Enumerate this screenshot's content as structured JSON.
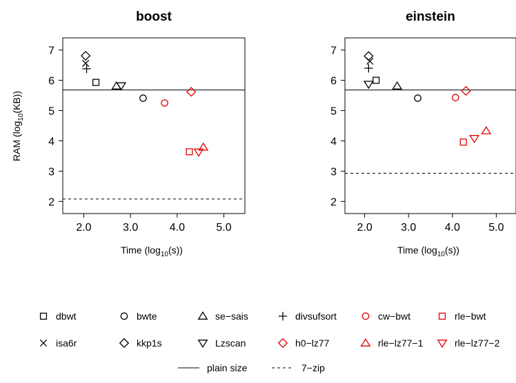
{
  "chart_data": {
    "type": "scatter",
    "colors": {
      "black": "#000000",
      "red": "#e00000"
    },
    "xlim": [
      1.55,
      5.45
    ],
    "ylim": [
      1.6,
      7.4
    ],
    "x_ticks": [
      "2.0",
      "3.0",
      "4.0",
      "5.0"
    ],
    "x_tick_values": [
      2,
      3,
      4,
      5
    ],
    "y_ticks": [
      "2",
      "3",
      "4",
      "5",
      "6",
      "7"
    ],
    "y_tick_values": [
      2,
      3,
      4,
      5,
      6,
      7
    ],
    "ylabel": {
      "main": "RAM (log",
      "sub": "10",
      "tail": "(KB))"
    },
    "xlabel": {
      "main": "Time (log",
      "sub": "10",
      "tail": "(s))"
    },
    "panels": [
      {
        "title": "boost",
        "plain_size": 5.68,
        "seven_zip": 2.08,
        "points": [
          {
            "series": "kkp1s",
            "x": 2.04,
            "y": 6.81
          },
          {
            "series": "isa6r",
            "x": 2.04,
            "y": 6.56
          },
          {
            "series": "divsufsort",
            "x": 2.06,
            "y": 6.38
          },
          {
            "series": "dbwt",
            "x": 2.26,
            "y": 5.93
          },
          {
            "series": "se-sais",
            "x": 2.7,
            "y": 5.81
          },
          {
            "series": "Lzscan",
            "x": 2.8,
            "y": 5.82
          },
          {
            "series": "bwte",
            "x": 3.27,
            "y": 5.41
          },
          {
            "series": "cw-bwt",
            "x": 3.73,
            "y": 5.25
          },
          {
            "series": "h0-lz77",
            "x": 4.3,
            "y": 5.62
          },
          {
            "series": "rle-bwt",
            "x": 4.26,
            "y": 3.64
          },
          {
            "series": "rle-lz77-2",
            "x": 4.46,
            "y": 3.63
          },
          {
            "series": "rle-lz77-1",
            "x": 4.56,
            "y": 3.79
          }
        ]
      },
      {
        "title": "einstein",
        "plain_size": 5.68,
        "seven_zip": 2.93,
        "points": [
          {
            "series": "kkp1s",
            "x": 2.09,
            "y": 6.8
          },
          {
            "series": "isa6r",
            "x": 2.12,
            "y": 6.63
          },
          {
            "series": "divsufsort",
            "x": 2.09,
            "y": 6.4
          },
          {
            "series": "dbwt",
            "x": 2.26,
            "y": 6.0
          },
          {
            "series": "Lzscan",
            "x": 2.09,
            "y": 5.87
          },
          {
            "series": "se-sais",
            "x": 2.74,
            "y": 5.81
          },
          {
            "series": "bwte",
            "x": 3.21,
            "y": 5.41
          },
          {
            "series": "cw-bwt",
            "x": 4.07,
            "y": 5.43
          },
          {
            "series": "h0-lz77",
            "x": 4.31,
            "y": 5.65
          },
          {
            "series": "rle-bwt",
            "x": 4.25,
            "y": 3.96
          },
          {
            "series": "rle-lz77-2",
            "x": 4.5,
            "y": 4.08
          },
          {
            "series": "rle-lz77-1",
            "x": 4.77,
            "y": 4.33
          }
        ]
      }
    ],
    "series": [
      {
        "name": "dbwt",
        "marker": "square",
        "color": "#000000"
      },
      {
        "name": "bwte",
        "marker": "circle",
        "color": "#000000"
      },
      {
        "name": "se−sais",
        "marker": "triangle-up",
        "color": "#000000"
      },
      {
        "name": "divsufsort",
        "marker": "plus",
        "color": "#000000"
      },
      {
        "name": "cw−bwt",
        "marker": "circle",
        "color": "#e00000"
      },
      {
        "name": "rle−bwt",
        "marker": "square",
        "color": "#e00000"
      },
      {
        "name": "isa6r",
        "marker": "cross",
        "color": "#000000"
      },
      {
        "name": "kkp1s",
        "marker": "diamond",
        "color": "#000000"
      },
      {
        "name": "Lzscan",
        "marker": "triangle-down",
        "color": "#000000"
      },
      {
        "name": "h0−lz77",
        "marker": "diamond",
        "color": "#e00000"
      },
      {
        "name": "rle−lz77−1",
        "marker": "triangle-up",
        "color": "#e00000"
      },
      {
        "name": "rle−lz77−2",
        "marker": "triangle-down",
        "color": "#e00000"
      }
    ],
    "line_legend": [
      {
        "name": "plain size",
        "style": "solid"
      },
      {
        "name": "7−zip",
        "style": "dashed"
      }
    ],
    "legend_position": "bottom"
  }
}
